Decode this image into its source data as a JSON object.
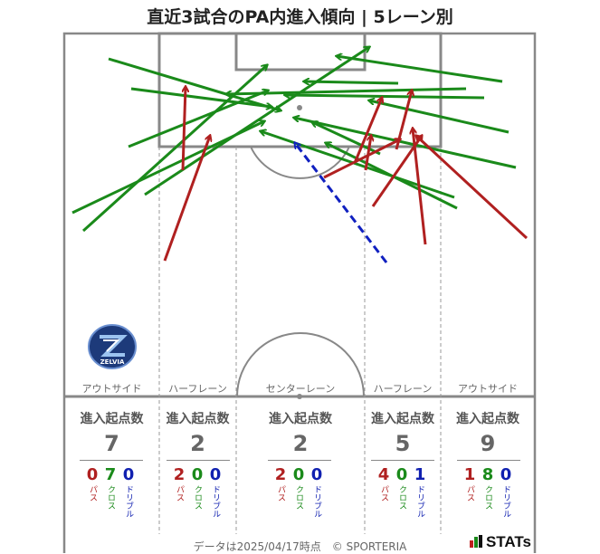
{
  "title": "直近3試合のPA内進入傾向 | 5レーン別",
  "lanes": [
    {
      "label": "アウトサイド",
      "head": "進入起点数",
      "total": "7",
      "pass": "0",
      "cross": "7",
      "dribble": "0"
    },
    {
      "label": "ハーフレーン",
      "head": "進入起点数",
      "total": "2",
      "pass": "2",
      "cross": "0",
      "dribble": "0"
    },
    {
      "label": "センターレーン",
      "head": "進入起点数",
      "total": "2",
      "pass": "2",
      "cross": "0",
      "dribble": "0"
    },
    {
      "label": "ハーフレーン",
      "head": "進入起点数",
      "total": "5",
      "pass": "4",
      "cross": "0",
      "dribble": "1"
    },
    {
      "label": "アウトサイド",
      "head": "進入起点数",
      "total": "9",
      "pass": "1",
      "cross": "8",
      "dribble": "0"
    }
  ],
  "legend": {
    "pass": "パス",
    "cross": "クロス",
    "dribble": "ドリブル"
  },
  "colors": {
    "pass": "#b02020",
    "cross": "#1a8a1a",
    "dribble": "#1020c0"
  },
  "club_emblem_text": "ZELVIA",
  "footer": "データは2025/04/17時点　© SPORTERIA",
  "brand": "STATs"
}
